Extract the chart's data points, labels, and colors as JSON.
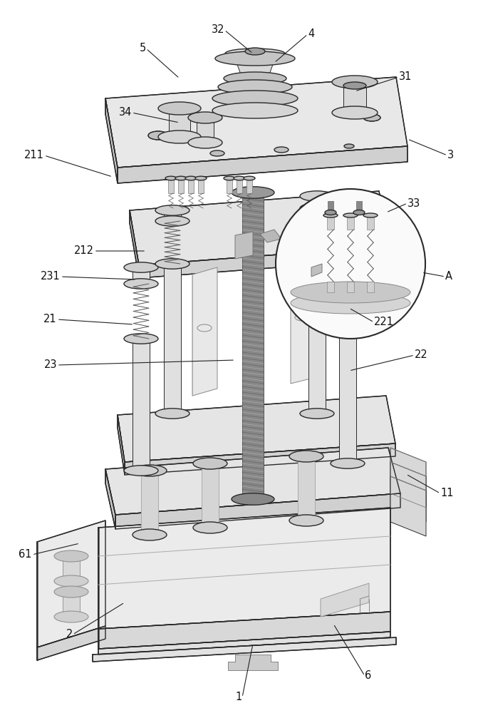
{
  "bg_color": "#ffffff",
  "lc": "#2a2a2a",
  "figsize": [
    6.85,
    10.0
  ],
  "dpi": 100,
  "leaders": [
    [
      "1",
      340,
      978,
      355,
      903
    ],
    [
      "2",
      102,
      890,
      175,
      845
    ],
    [
      "3",
      628,
      218,
      572,
      195
    ],
    [
      "4",
      432,
      48,
      385,
      88
    ],
    [
      "5",
      205,
      68,
      252,
      110
    ],
    [
      "6",
      512,
      948,
      468,
      875
    ],
    [
      "11",
      618,
      692,
      570,
      665
    ],
    [
      "21",
      80,
      448,
      188,
      455
    ],
    [
      "22",
      582,
      498,
      490,
      520
    ],
    [
      "23",
      80,
      512,
      330,
      505
    ],
    [
      "31",
      560,
      108,
      498,
      128
    ],
    [
      "32",
      315,
      42,
      355,
      75
    ],
    [
      "33",
      572,
      285,
      542,
      298
    ],
    [
      "34",
      185,
      158,
      252,
      172
    ],
    [
      "61",
      45,
      778,
      112,
      762
    ],
    [
      "211",
      62,
      218,
      158,
      248
    ],
    [
      "212",
      132,
      352,
      205,
      352
    ],
    [
      "221",
      525,
      452,
      490,
      432
    ],
    [
      "231",
      85,
      388,
      192,
      392
    ],
    [
      "A",
      625,
      388,
      592,
      382
    ]
  ]
}
